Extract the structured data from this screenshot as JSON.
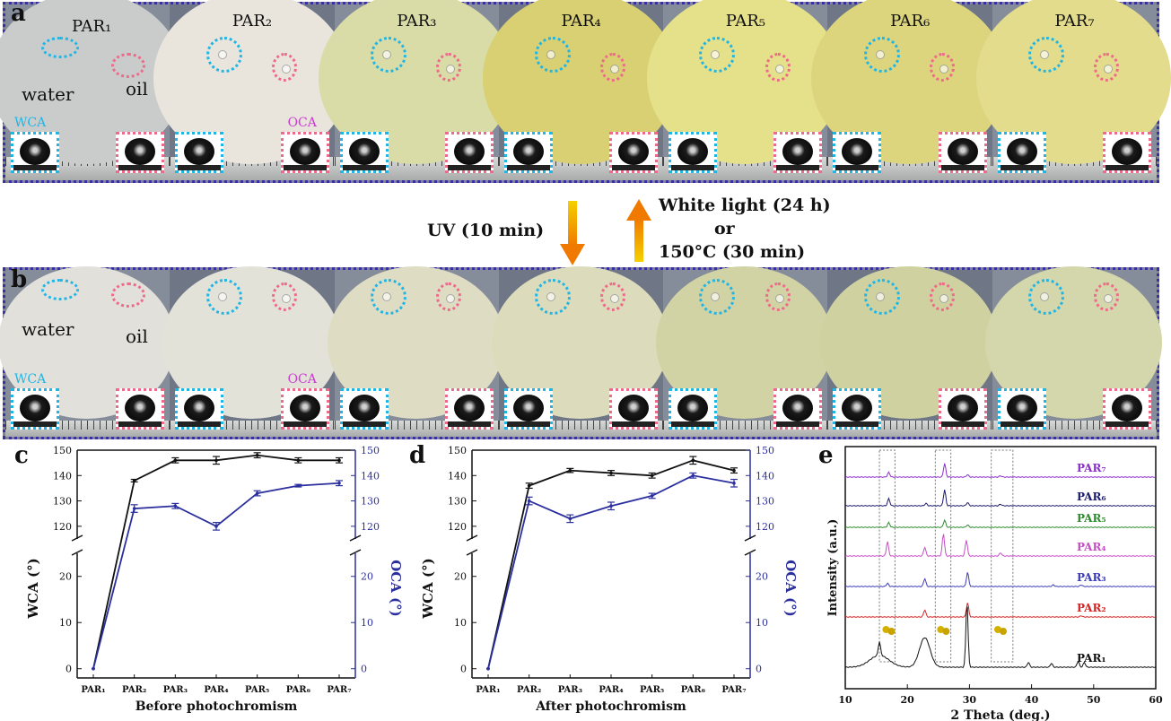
{
  "figure": {
    "panel_a": {
      "label": "a",
      "samples": [
        "PAR₁",
        "PAR₂",
        "PAR₃",
        "PAR₄",
        "PAR₅",
        "PAR₆",
        "PAR₇"
      ],
      "water_label": "water",
      "oil_label": "oil",
      "wca_label": "WCA",
      "oca_label": "OCA",
      "disc_colors": [
        "#c9cccb",
        "#e9e5dd",
        "#d9dca7",
        "#d8d073",
        "#e5e08a",
        "#dcd57e",
        "#e2dc8c"
      ]
    },
    "arrows": {
      "down_label": "UV (10 min)",
      "up_label_1": "White light (24 h)",
      "up_label_2": "or",
      "up_label_3": "150°C (30 min)"
    },
    "panel_b": {
      "label": "b",
      "water_label": "water",
      "oil_label": "oil",
      "wca_label": "WCA",
      "oca_label": "OCA",
      "disc_colors": [
        "#e1e0da",
        "#e3e2d9",
        "#dfdcc4",
        "#dcdbbb",
        "#d1d3a4",
        "#cfd2a0",
        "#d4d6ab"
      ]
    }
  },
  "chart_data": [
    {
      "label": "c",
      "type": "line",
      "categories": [
        "PAR₁",
        "PAR₂",
        "PAR₃",
        "PAR₄",
        "PAR₅",
        "PAR₆",
        "PAR₇"
      ],
      "xlabel": "Before photochromism",
      "ylabel_left": "WCA (°)",
      "ylabel_right": "OCA (°)",
      "axis_break": true,
      "ylim_lower": [
        -2,
        25
      ],
      "ylim_upper": [
        115,
        150
      ],
      "yticks_lower": [
        0,
        10,
        20
      ],
      "yticks_upper": [
        120,
        130,
        140,
        150
      ],
      "series": [
        {
          "name": "WCA",
          "axis": "left",
          "color": "#111111",
          "values": [
            0,
            138,
            146,
            146,
            148,
            146,
            146
          ],
          "errors": [
            0,
            0.5,
            1,
            1.5,
            1,
            1,
            1
          ]
        },
        {
          "name": "OCA",
          "axis": "right",
          "color": "#2b2f9e",
          "values": [
            0,
            127,
            128,
            120,
            133,
            136,
            137
          ],
          "errors": [
            0,
            1.5,
            1,
            1.5,
            1,
            0.5,
            1
          ]
        }
      ]
    },
    {
      "label": "d",
      "type": "line",
      "categories": [
        "PAR₁",
        "PAR₂",
        "PAR₃",
        "PAR₄",
        "PAR₅",
        "PAR₆",
        "PAR₇"
      ],
      "xlabel": "After photochromism",
      "ylabel_left": "WCA (°)",
      "ylabel_right": "OCA (°)",
      "axis_break": true,
      "ylim_lower": [
        -2,
        25
      ],
      "ylim_upper": [
        115,
        150
      ],
      "yticks_lower": [
        0,
        10,
        20
      ],
      "yticks_upper": [
        120,
        130,
        140,
        150
      ],
      "series": [
        {
          "name": "WCA",
          "axis": "left",
          "color": "#111111",
          "values": [
            0,
            136,
            142,
            141,
            140,
            146,
            142
          ],
          "errors": [
            0,
            1,
            0.8,
            1,
            1,
            1.5,
            1
          ]
        },
        {
          "name": "OCA",
          "axis": "right",
          "color": "#2b2f9e",
          "values": [
            0,
            130,
            123,
            128,
            132,
            140,
            137
          ],
          "errors": [
            0,
            1.5,
            1.5,
            1.5,
            1,
            1,
            1.5
          ]
        }
      ]
    },
    {
      "label": "e",
      "type": "line",
      "xlabel": "2 Theta (deg.)",
      "ylabel": "Intensity (a.u.)",
      "xlim": [
        10,
        60
      ],
      "xticks": [
        10,
        20,
        30,
        40,
        50,
        60
      ],
      "dashed_boxes": [
        [
          15.5,
          18
        ],
        [
          24.5,
          27
        ],
        [
          33.5,
          37
        ]
      ],
      "series": [
        {
          "name": "PAR₇",
          "color": "#8b2fc9",
          "peaks": [
            [
              17,
              0.3
            ],
            [
              26,
              0.85
            ],
            [
              29.7,
              0.15
            ],
            [
              35,
              0.08
            ]
          ]
        },
        {
          "name": "PAR₆",
          "color": "#1c1c6e",
          "peaks": [
            [
              17,
              0.45
            ],
            [
              23,
              0.15
            ],
            [
              26,
              1.0
            ],
            [
              29.7,
              0.2
            ],
            [
              35,
              0.1
            ]
          ]
        },
        {
          "name": "PAR₅",
          "color": "#2e8b2e",
          "peaks": [
            [
              17,
              0.3
            ],
            [
              26,
              0.45
            ],
            [
              29.7,
              0.15
            ]
          ]
        },
        {
          "name": "PAR₄",
          "color": "#c44fc4",
          "peaks": [
            [
              16.8,
              0.9
            ],
            [
              22.8,
              0.55
            ],
            [
              25.8,
              1.4
            ],
            [
              29.5,
              1.0
            ],
            [
              35,
              0.2
            ]
          ]
        },
        {
          "name": "PAR₃",
          "color": "#3d3db8",
          "peaks": [
            [
              16.8,
              0.2
            ],
            [
              22.8,
              0.5
            ],
            [
              29.7,
              0.9
            ],
            [
              43.5,
              0.1
            ],
            [
              48,
              0.1
            ]
          ]
        },
        {
          "name": "PAR₂",
          "color": "#d42424",
          "peaks": [
            [
              22.8,
              0.45
            ],
            [
              29.7,
              0.9
            ],
            [
              48,
              0.08
            ]
          ]
        },
        {
          "name": "PAR₁",
          "color": "#111111",
          "peaks": [
            [
              15.5,
              0.7
            ],
            [
              22.8,
              1.5
            ],
            [
              29.6,
              3.3
            ],
            [
              39.5,
              0.25
            ],
            [
              43.2,
              0.2
            ],
            [
              47.5,
              0.3
            ],
            [
              48.5,
              0.25
            ]
          ]
        }
      ]
    }
  ]
}
